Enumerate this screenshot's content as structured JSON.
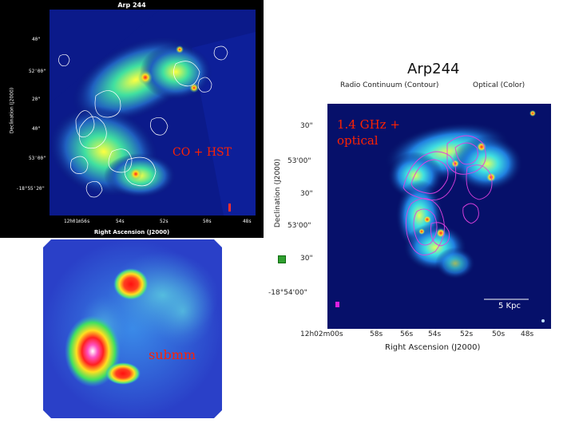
{
  "slide": {
    "labels": {
      "co_hst": "CO + HST",
      "submm": "submm",
      "radio": "1.4 GHz +\noptical"
    }
  },
  "panel_a": {
    "title": "Arp 244",
    "xlabel": "Right Ascension (J2000)",
    "ylabel": "Declination (J2000)",
    "yticks": [
      "40\"",
      "52'00\"",
      "20\"",
      "40\"",
      "53'00\"",
      "-18°55'20\""
    ],
    "xticks": [
      "12h01m56s",
      "54s",
      "52s",
      "50s",
      "48s"
    ]
  },
  "panel_c": {
    "title": "Arp244",
    "subtitle_left": "Radio Continuum (Contour)",
    "subtitle_right": "Optical (Color)",
    "xlabel": "Right Ascension (J2000)",
    "ylabel": "Declination (J2000)",
    "yticks": [
      "30\"",
      "53'00\"",
      "30\"",
      "53'00\"",
      "30\"",
      "-18°54'00\""
    ],
    "xticks": [
      "12h02m00s",
      "58s",
      "56s",
      "54s",
      "52s",
      "50s",
      "48s"
    ],
    "scalebar": "5 Kpc"
  }
}
